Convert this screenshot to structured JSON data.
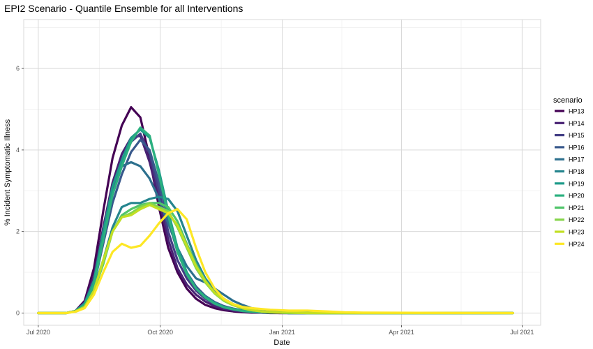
{
  "chart_data": {
    "type": "line",
    "title": "EPI2 Scenario - Quantile Ensemble for all Interventions",
    "xlabel": "Date",
    "ylabel": "% Incident Symptomatic Illness",
    "xlim": [
      "2020-06-20",
      "2021-07-15"
    ],
    "ylim": [
      -0.3,
      7.2
    ],
    "x_ticks": [
      {
        "date": "2020-07-01",
        "label": "Jul 2020"
      },
      {
        "date": "2020-10-01",
        "label": "Oct 2020"
      },
      {
        "date": "2021-01-01",
        "label": "Jan 2021"
      },
      {
        "date": "2021-04-01",
        "label": "Apr 2021"
      },
      {
        "date": "2021-07-01",
        "label": "Jul 2021"
      }
    ],
    "y_ticks": [
      0,
      2,
      4,
      6
    ],
    "grid": true,
    "legend_title": "scenario",
    "legend_position": "right",
    "x": [
      "2020-07-01",
      "2020-07-22",
      "2020-07-29",
      "2020-08-05",
      "2020-08-12",
      "2020-08-19",
      "2020-08-26",
      "2020-09-02",
      "2020-09-09",
      "2020-09-16",
      "2020-09-23",
      "2020-09-30",
      "2020-10-07",
      "2020-10-14",
      "2020-10-21",
      "2020-10-28",
      "2020-11-04",
      "2020-11-11",
      "2020-11-18",
      "2020-11-25",
      "2020-12-02",
      "2020-12-09",
      "2020-12-16",
      "2020-12-23",
      "2020-12-30",
      "2021-01-06",
      "2021-01-20",
      "2021-02-03",
      "2021-02-17",
      "2021-03-03",
      "2021-06-24"
    ],
    "series": [
      {
        "name": "HP13",
        "color": "#440154",
        "values": [
          0,
          0,
          0.05,
          0.3,
          1.1,
          2.5,
          3.8,
          4.6,
          5.05,
          4.8,
          3.8,
          2.6,
          1.6,
          1.0,
          0.6,
          0.35,
          0.2,
          0.12,
          0.07,
          0.04,
          0.02,
          0.01,
          0.01,
          0,
          0,
          0,
          0,
          0,
          0,
          0,
          0
        ]
      },
      {
        "name": "HP14",
        "color": "#482173",
        "values": [
          0,
          0,
          0.05,
          0.25,
          0.9,
          2.1,
          3.2,
          3.9,
          4.3,
          4.35,
          3.7,
          2.8,
          1.8,
          1.1,
          0.7,
          0.45,
          0.28,
          0.17,
          0.1,
          0.06,
          0.04,
          0.02,
          0.01,
          0.01,
          0,
          0,
          0,
          0,
          0,
          0,
          0
        ]
      },
      {
        "name": "HP15",
        "color": "#433E85",
        "values": [
          0,
          0,
          0.05,
          0.22,
          0.8,
          1.9,
          3.0,
          3.7,
          4.2,
          4.4,
          3.9,
          3.0,
          2.0,
          1.3,
          0.85,
          0.55,
          0.35,
          0.22,
          0.14,
          0.08,
          0.05,
          0.03,
          0.02,
          0.01,
          0.01,
          0,
          0,
          0,
          0,
          0,
          0
        ]
      },
      {
        "name": "HP16",
        "color": "#38598C",
        "values": [
          0,
          0,
          0.05,
          0.2,
          0.7,
          1.7,
          2.7,
          3.4,
          3.95,
          4.25,
          4.0,
          3.2,
          2.3,
          1.5,
          1.0,
          0.65,
          0.42,
          0.27,
          0.17,
          0.11,
          0.07,
          0.04,
          0.02,
          0.01,
          0.01,
          0,
          0,
          0,
          0,
          0,
          0
        ]
      },
      {
        "name": "HP17",
        "color": "#2D708E",
        "values": [
          0,
          0,
          0.05,
          0.25,
          0.8,
          1.8,
          2.9,
          3.6,
          3.7,
          3.6,
          3.3,
          2.8,
          2.2,
          1.6,
          1.15,
          0.85,
          0.75,
          0.6,
          0.45,
          0.3,
          0.2,
          0.12,
          0.08,
          0.05,
          0.03,
          0.02,
          0.01,
          0,
          0,
          0,
          0
        ]
      },
      {
        "name": "HP18",
        "color": "#25858E",
        "values": [
          0,
          0,
          0.04,
          0.15,
          0.6,
          1.3,
          2.1,
          2.6,
          2.7,
          2.7,
          2.8,
          2.85,
          2.8,
          2.5,
          1.9,
          1.3,
          0.85,
          0.55,
          0.35,
          0.22,
          0.13,
          0.08,
          0.05,
          0.03,
          0.02,
          0.01,
          0,
          0,
          0,
          0,
          0
        ]
      },
      {
        "name": "HP19",
        "color": "#1E9B8A",
        "values": [
          0,
          0,
          0.05,
          0.22,
          0.8,
          2.0,
          3.1,
          3.75,
          4.3,
          4.5,
          4.3,
          3.5,
          2.5,
          1.6,
          1.0,
          0.6,
          0.4,
          0.25,
          0.15,
          0.1,
          0.06,
          0.04,
          0.02,
          0.01,
          0.01,
          0,
          0,
          0,
          0,
          0,
          0
        ]
      },
      {
        "name": "HP20",
        "color": "#2BB07F",
        "values": [
          0,
          0,
          0.05,
          0.2,
          0.7,
          1.8,
          2.9,
          3.6,
          4.2,
          4.55,
          4.35,
          3.4,
          2.4,
          1.5,
          0.95,
          0.6,
          0.38,
          0.23,
          0.14,
          0.09,
          0.05,
          0.03,
          0.02,
          0.01,
          0.01,
          0,
          0,
          0,
          0,
          0,
          0
        ]
      },
      {
        "name": "HP21",
        "color": "#51C56A",
        "values": [
          0,
          0,
          0.04,
          0.15,
          0.55,
          1.2,
          2.0,
          2.4,
          2.55,
          2.65,
          2.7,
          2.7,
          2.6,
          2.25,
          1.7,
          1.2,
          0.8,
          0.5,
          0.32,
          0.2,
          0.12,
          0.07,
          0.04,
          0.02,
          0.01,
          0.01,
          0,
          0,
          0,
          0,
          0
        ]
      },
      {
        "name": "HP22",
        "color": "#85D54A",
        "values": [
          0,
          0,
          0.04,
          0.15,
          0.55,
          1.25,
          2.0,
          2.35,
          2.45,
          2.6,
          2.7,
          2.6,
          2.5,
          2.1,
          1.6,
          1.1,
          0.75,
          0.48,
          0.3,
          0.19,
          0.12,
          0.07,
          0.04,
          0.02,
          0.01,
          0.01,
          0,
          0,
          0,
          0,
          0
        ]
      },
      {
        "name": "HP23",
        "color": "#C2DF23",
        "values": [
          0,
          0,
          0.04,
          0.15,
          0.55,
          1.3,
          2.0,
          2.35,
          2.4,
          2.55,
          2.65,
          2.55,
          2.45,
          2.15,
          1.65,
          1.15,
          0.78,
          0.5,
          0.32,
          0.2,
          0.12,
          0.07,
          0.04,
          0.02,
          0.01,
          0.01,
          0,
          0,
          0,
          0,
          0
        ]
      },
      {
        "name": "HP24",
        "color": "#FDE725",
        "values": [
          0,
          0,
          0.03,
          0.12,
          0.45,
          1.0,
          1.5,
          1.7,
          1.6,
          1.65,
          1.9,
          2.2,
          2.45,
          2.55,
          2.3,
          1.6,
          1.0,
          0.6,
          0.35,
          0.22,
          0.15,
          0.12,
          0.1,
          0.08,
          0.07,
          0.06,
          0.06,
          0.04,
          0.02,
          0.01,
          0
        ]
      }
    ]
  }
}
